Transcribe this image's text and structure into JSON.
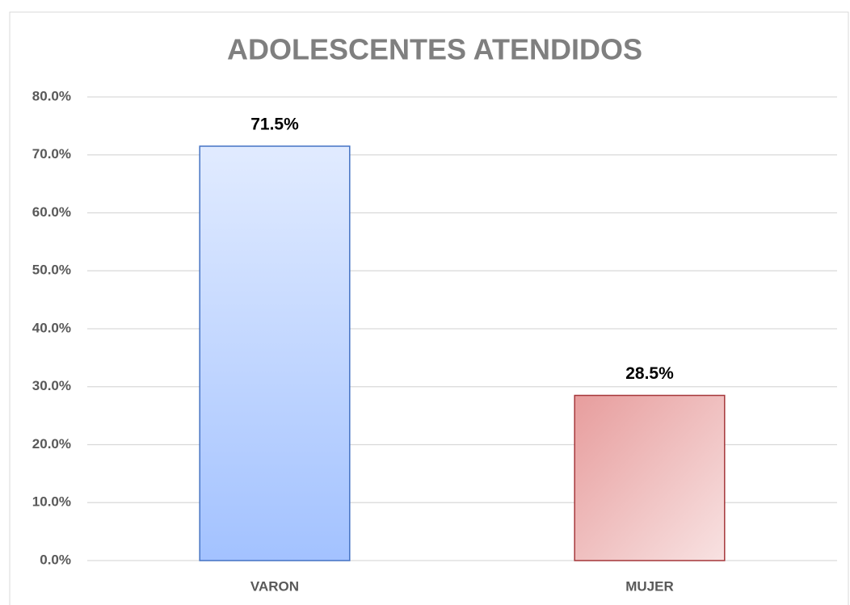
{
  "chart_data": {
    "type": "bar",
    "title": "ADOLESCENTES ATENDIDOS",
    "categories": [
      "VARON",
      "MUJER"
    ],
    "values": [
      71.5,
      28.5
    ],
    "value_labels": [
      "71.5%",
      "28.5%"
    ],
    "colors": [
      "#4472c4",
      "#a5373a"
    ],
    "ylim": [
      0,
      80
    ],
    "yticks": [
      {
        "value": 0,
        "label": "0.0%"
      },
      {
        "value": 10,
        "label": "10.0%"
      },
      {
        "value": 20,
        "label": "20.0%"
      },
      {
        "value": 30,
        "label": "30.0%"
      },
      {
        "value": 40,
        "label": "40.0%"
      },
      {
        "value": 50,
        "label": "50.0%"
      },
      {
        "value": 60,
        "label": "60.0%"
      },
      {
        "value": 70,
        "label": "70.0%"
      },
      {
        "value": 80,
        "label": "80.0%"
      }
    ],
    "grid": true
  }
}
